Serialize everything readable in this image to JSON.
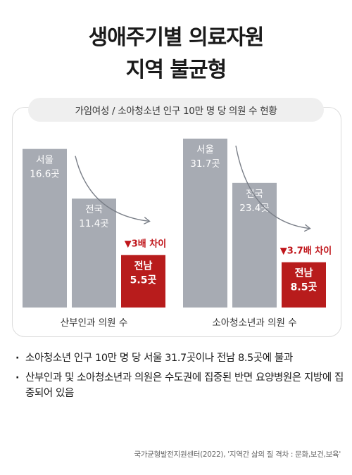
{
  "title_line1": "생애주기별 의료자원",
  "title_line2": "지역 불균형",
  "chart_title": "가임여성 / 소아청소년 인구 10만 명 당 의원 수 현황",
  "colors": {
    "bar_gray": "#a7abb3",
    "bar_red": "#b81c1c",
    "red_text": "#c0161b",
    "arrow": "#7a7f88"
  },
  "chart_data": [
    {
      "type": "bar",
      "title": "",
      "xlabel": "산부인과 의원 수",
      "categories": [
        "서울",
        "전국",
        "전남"
      ],
      "values": [
        16.6,
        11.4,
        5.5
      ],
      "value_labels": [
        "16.6곳",
        "11.4곳",
        "5.5곳"
      ],
      "highlight": "전남",
      "annotation": "▼3배 차이"
    },
    {
      "type": "bar",
      "title": "",
      "xlabel": "소아청소년과 의원 수",
      "categories": [
        "서울",
        "전국",
        "전남"
      ],
      "values": [
        31.7,
        23.4,
        8.5
      ],
      "value_labels": [
        "31.7곳",
        "23.4곳",
        "8.5곳"
      ],
      "highlight": "전남",
      "annotation": "▼3.7배 차이"
    }
  ],
  "bullets": [
    "소아청소년 인구 10만 명 당 서울 31.7곳이나 전남 8.5곳에 불과",
    "산부인과 및 소아청소년과 의원은 수도권에 집중된 반면 요양병원은 지방에 집중되어 있음"
  ],
  "source": "국가균형발전지원센터(2022), '지역간 삶의 질 격차 : 문화,보건,보육'"
}
